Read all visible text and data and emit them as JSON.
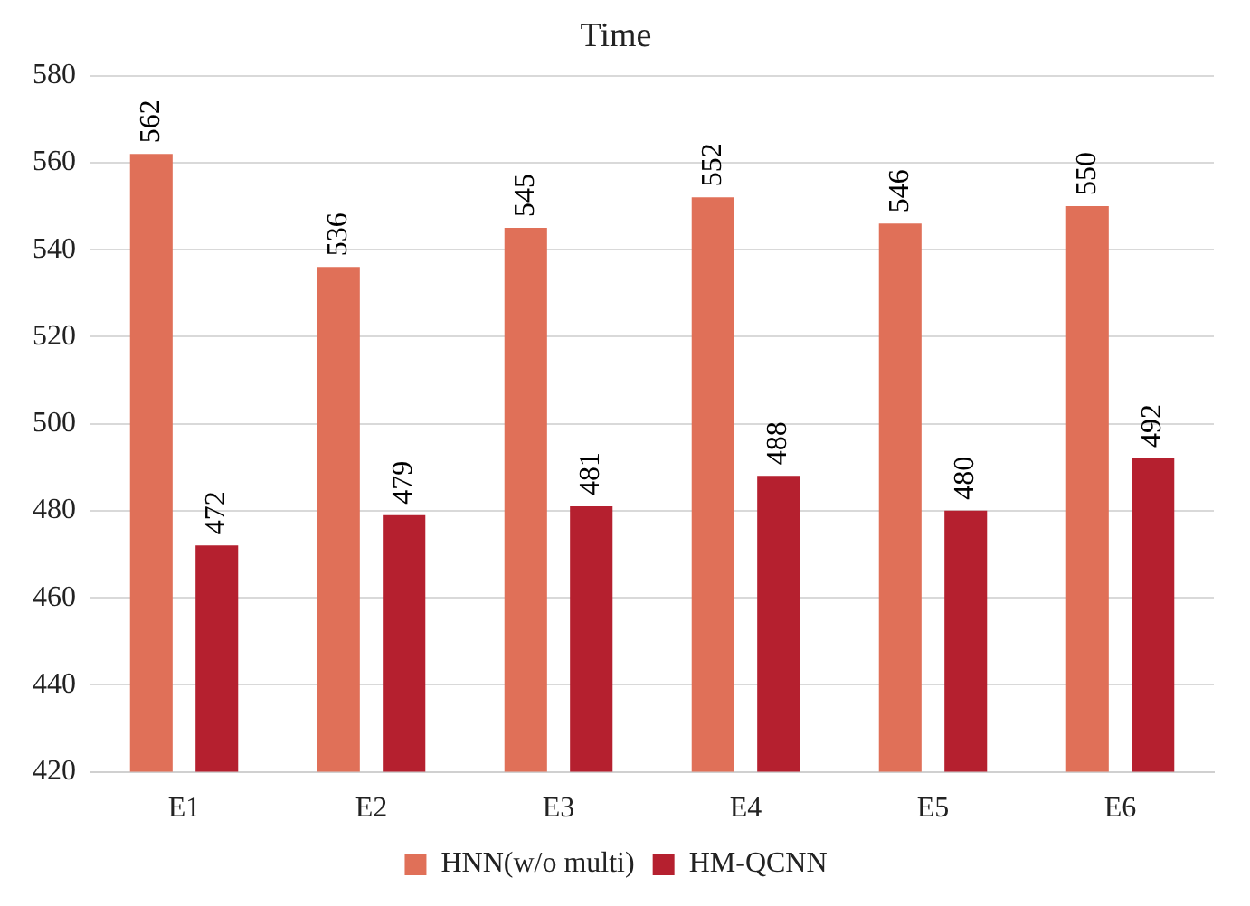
{
  "chart_data": {
    "type": "bar",
    "title": "Time",
    "categories": [
      "E1",
      "E2",
      "E3",
      "E4",
      "E5",
      "E6"
    ],
    "series": [
      {
        "name": "HNN(w/o multi)",
        "color": "#e07058",
        "values": [
          562,
          536,
          545,
          552,
          546,
          550
        ]
      },
      {
        "name": "HM-QCNN",
        "color": "#b5202f",
        "values": [
          472,
          479,
          481,
          488,
          480,
          492
        ]
      }
    ],
    "ylim": [
      420,
      580
    ],
    "yticks": [
      420,
      440,
      460,
      480,
      500,
      520,
      540,
      560,
      580
    ],
    "grid": "y",
    "legend": "bottom",
    "data_labels": true
  }
}
